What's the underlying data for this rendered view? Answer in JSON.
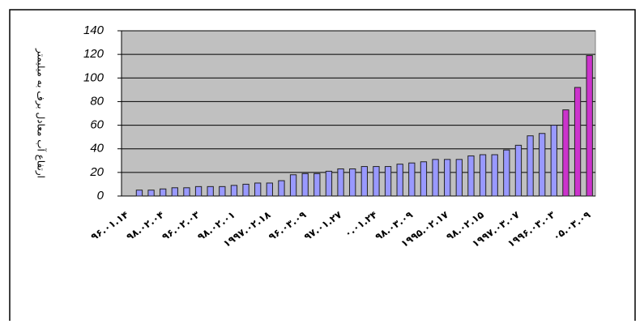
{
  "chart_data": {
    "type": "bar",
    "y_label": "ارتفاع آب معادل برف به میلیمتر",
    "categories": [
      "۹۶.۰۱.۱۴",
      null,
      null,
      "۹۸.۰۲.۰۴",
      null,
      null,
      "۹۶.۰۲.۰۳",
      null,
      null,
      "۹۸.۰۲.۰۱",
      null,
      null,
      "۱۹۹۷.۰۲.۱۸",
      null,
      null,
      "۹۶.۰۳.۰۹",
      null,
      null,
      "۹۷.۰۱.۲۷",
      null,
      null,
      "۰.۰۱.۲۴",
      null,
      null,
      "۹۸.۰۳.۰۹",
      null,
      null,
      "۱۹۹۵.۰۲.۱۷",
      null,
      null,
      "۹۸.۰۲.۱۵",
      null,
      null,
      "۱۹۹۷.۰۳.۰۷",
      null,
      null,
      "۱۹۹۶.۰۳.۰۳",
      null,
      null,
      "۰۵.۰۳.۰۹"
    ],
    "values": [
      0,
      5,
      5,
      6,
      7,
      7,
      8,
      8,
      8,
      9,
      10,
      11,
      11,
      13,
      18,
      19,
      19,
      21,
      23,
      23,
      25,
      25,
      25,
      27,
      28,
      29,
      31,
      31,
      31,
      34,
      35,
      35,
      39,
      43,
      51,
      53,
      60,
      73,
      92,
      119
    ],
    "colors": [
      "#9999ff",
      "#9999ff",
      "#9999ff",
      "#9999ff",
      "#9999ff",
      "#9999ff",
      "#9999ff",
      "#9999ff",
      "#9999ff",
      "#9999ff",
      "#9999ff",
      "#9999ff",
      "#9999ff",
      "#9999ff",
      "#9999ff",
      "#9999ff",
      "#9999ff",
      "#9999ff",
      "#9999ff",
      "#9999ff",
      "#9999ff",
      "#9999ff",
      "#9999ff",
      "#9999ff",
      "#9999ff",
      "#9999ff",
      "#9999ff",
      "#9999ff",
      "#9999ff",
      "#9999ff",
      "#9999ff",
      "#9999ff",
      "#9999ff",
      "#9999ff",
      "#9999ff",
      "#9999ff",
      "#9999ff",
      "#cc33cc",
      "#cc33cc",
      "#cc33cc"
    ],
    "ylim": [
      0,
      140
    ],
    "yticks": [
      0,
      20,
      40,
      60,
      80,
      100,
      120,
      140
    ],
    "grid": true,
    "plot_background": "#c0c0c0"
  }
}
